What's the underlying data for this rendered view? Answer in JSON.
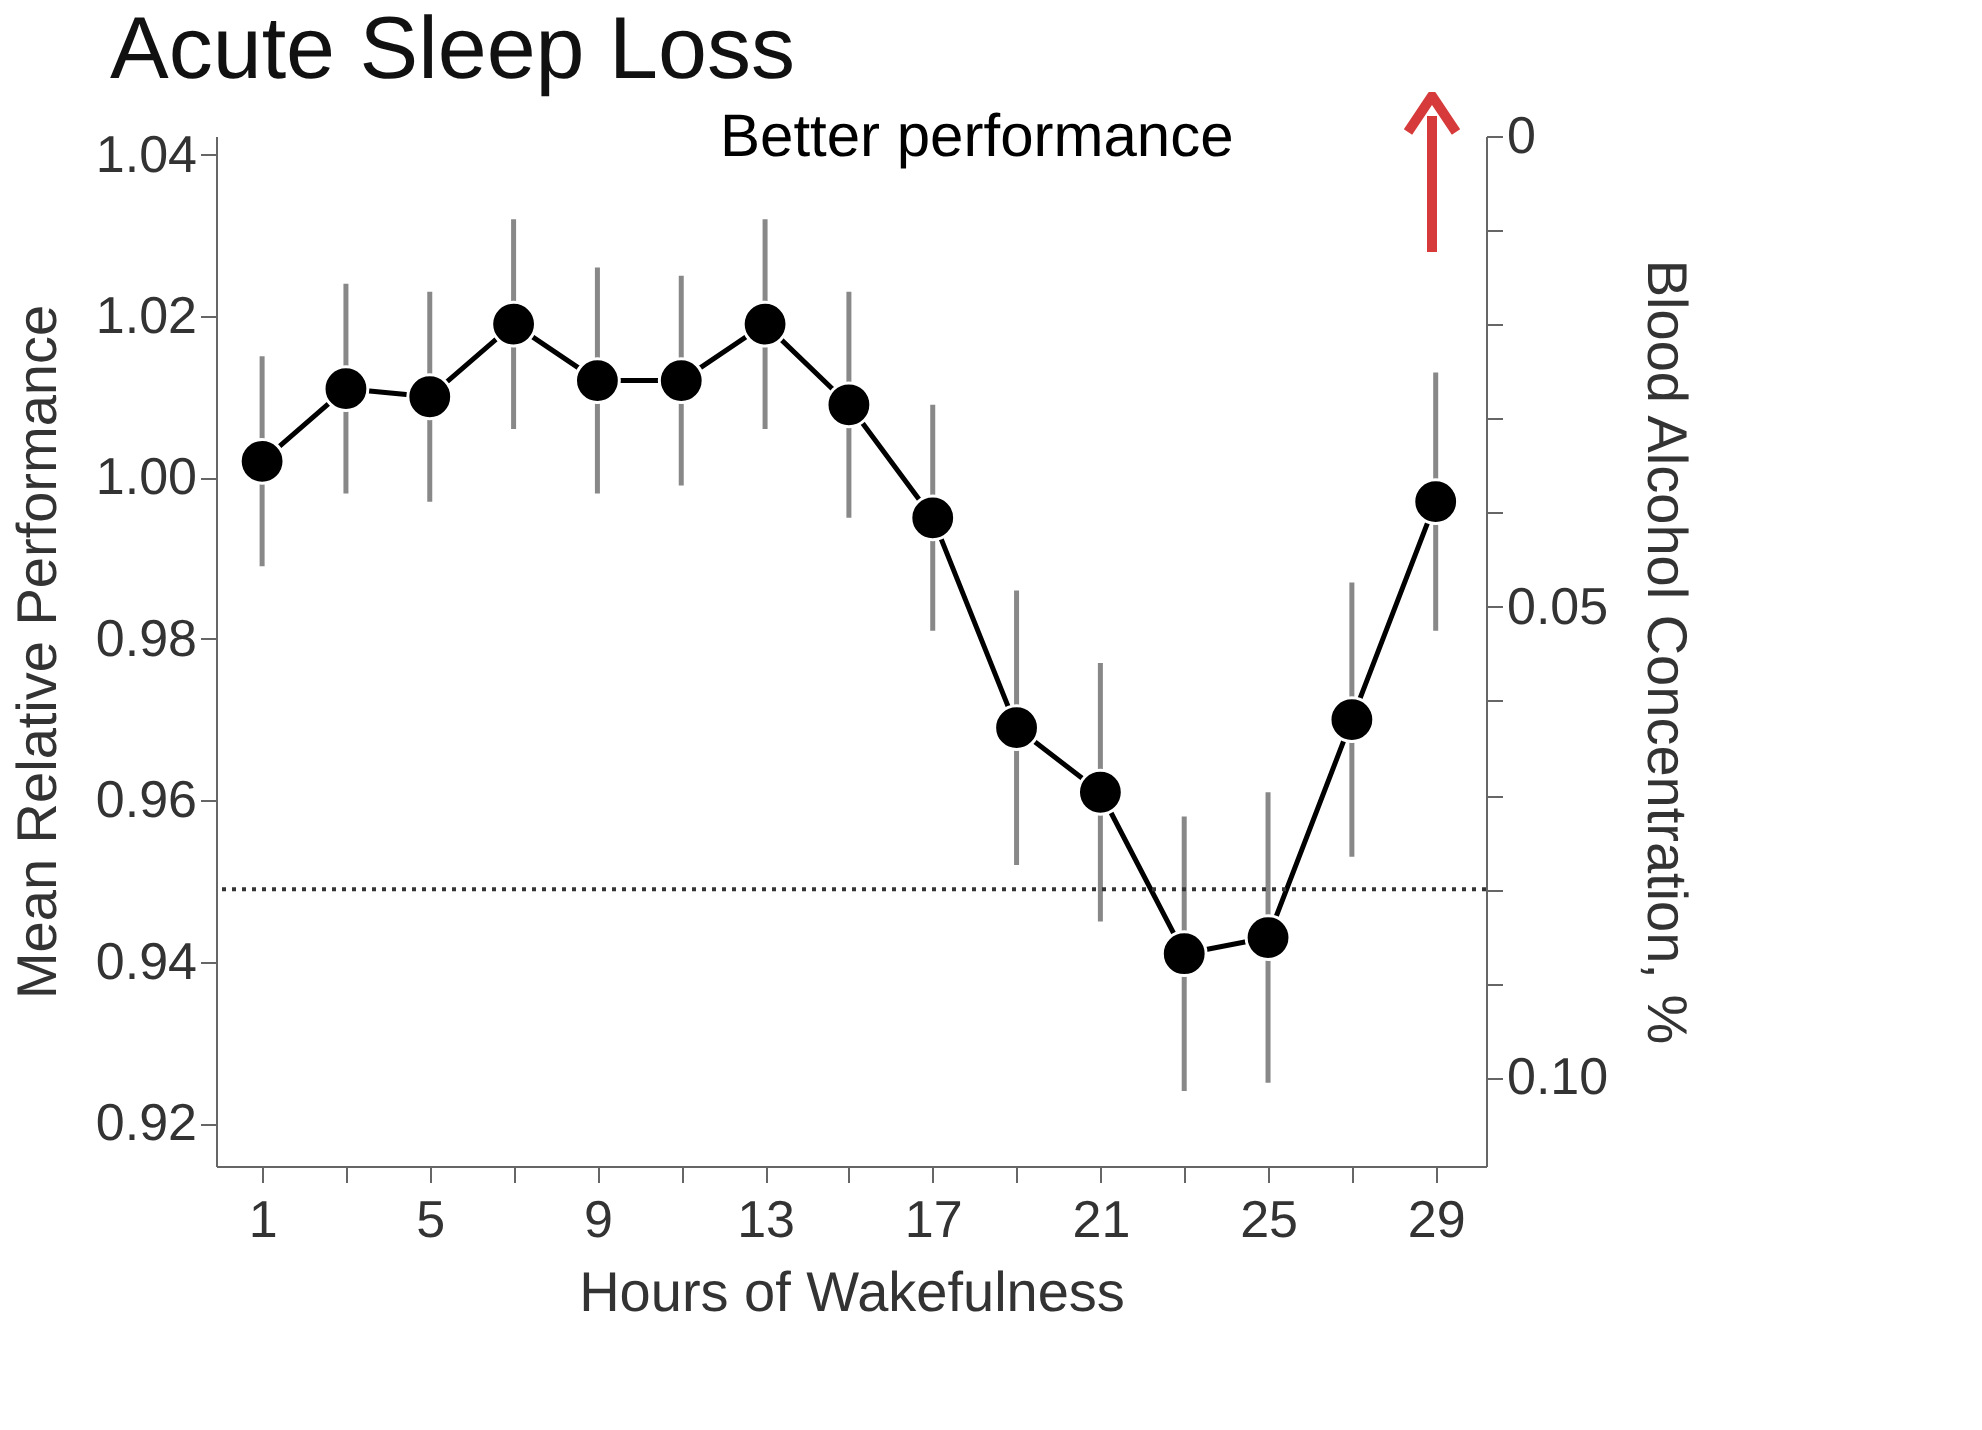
{
  "chart_data": {
    "type": "line",
    "title": "Acute Sleep Loss",
    "xlabel": "Hours of Wakefulness",
    "ylabel": "Mean Relative Performance",
    "y2label": "Blood Alcohol Concentration, %",
    "x": [
      1,
      3,
      5,
      7,
      9,
      11,
      13,
      15,
      17,
      19,
      21,
      23,
      25,
      27,
      29
    ],
    "series": [
      {
        "color": "#000000",
        "values": [
          1.002,
          1.011,
          1.01,
          1.019,
          1.012,
          1.012,
          1.019,
          1.009,
          0.995,
          0.969,
          0.961,
          0.941,
          0.943,
          0.97,
          0.997
        ],
        "errors": [
          0.013,
          0.013,
          0.013,
          0.013,
          0.014,
          0.013,
          0.013,
          0.014,
          0.014,
          0.017,
          0.016,
          0.017,
          0.018,
          0.017,
          0.016
        ]
      }
    ],
    "marker": "circle",
    "line_style": "solid",
    "grid": false,
    "xlim": [
      -0.1,
      30.2
    ],
    "xticks": [
      1,
      {
        "value": 3,
        "label": null
      },
      5,
      {
        "value": 7,
        "label": null
      },
      9,
      {
        "value": 11,
        "label": null
      },
      13,
      {
        "value": 15,
        "label": null
      },
      17,
      {
        "value": 19,
        "label": null
      },
      21,
      {
        "value": 23,
        "label": null
      },
      25,
      {
        "value": 27,
        "label": null
      },
      29
    ],
    "ylim": [
      0.9147,
      1.0423
    ],
    "yticks": [
      0.92,
      0.94,
      0.96,
      0.98,
      {
        "value": 1.0,
        "label": "1.00"
      },
      1.02,
      1.04
    ],
    "y2lim": [
      0.1094,
      0
    ],
    "y2ticks": [
      0,
      {
        "value": 0.01,
        "label": null
      },
      {
        "value": 0.02,
        "label": null
      },
      {
        "value": 0.03,
        "label": null
      },
      {
        "value": 0.04,
        "label": null
      },
      0.05,
      {
        "value": 0.06,
        "label": null
      },
      {
        "value": 0.07,
        "label": null
      },
      {
        "value": 0.08,
        "label": null
      },
      {
        "value": 0.09,
        "label": null
      },
      {
        "value": 0.1,
        "label": "0.10"
      }
    ],
    "ref_lines": [
      {
        "axis": "y2",
        "value": 0.08,
        "label": null,
        "line_style": "dotted",
        "color": "#333333"
      }
    ],
    "annotations": [
      "Better performance"
    ]
  }
}
